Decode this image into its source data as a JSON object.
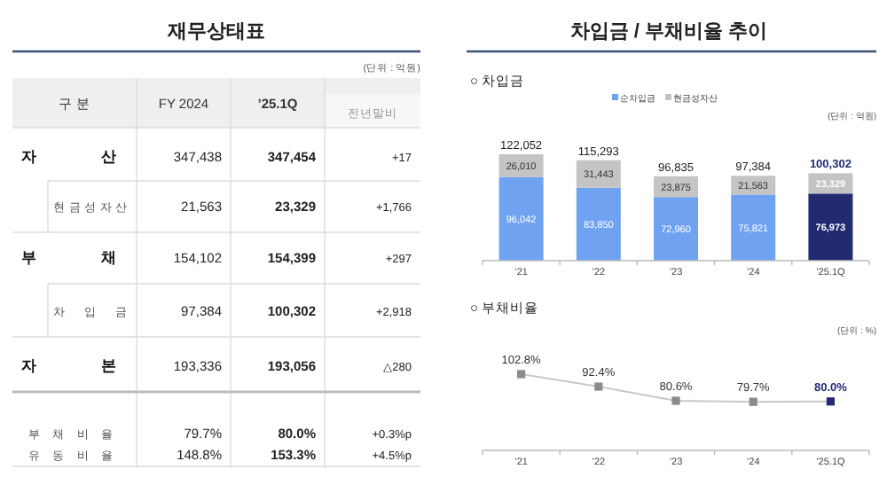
{
  "chart_data": [
    {
      "type": "other",
      "title": "재무상태표",
      "annotations": [
        "(단위 : 억원)"
      ],
      "categories": [
        "구 분",
        "FY 2024",
        "’25.1Q",
        "전년말비"
      ],
      "y_categories": [
        "자산",
        "현금성자산",
        "부채",
        "차입금",
        "자본",
        "부채비율",
        "유동비율"
      ],
      "cell_labels": [
        [
          "347,438",
          "347,454",
          "+17"
        ],
        [
          "21,563",
          "23,329",
          "+1,766"
        ],
        [
          "154,102",
          "154,399",
          "+297"
        ],
        [
          "97,384",
          "100,302",
          "+2,918"
        ],
        [
          "193,336",
          "193,056",
          "△280"
        ],
        [
          "79.7%",
          "80.0%",
          "+0.3%p"
        ],
        [
          "148.8%",
          "153.3%",
          "+4.5%p"
        ]
      ]
    },
    {
      "type": "bar",
      "title": "차입금 / 부채비율 추이",
      "subtitle": "○ 차입금",
      "annotations": [
        "(단위 : 억원)"
      ],
      "categories": [
        "’21",
        "’22",
        "’23",
        "’24",
        "’25.1Q"
      ],
      "stacked": true,
      "legend": "top",
      "series": [
        {
          "name": "순차입금",
          "color": "#6fa3f2",
          "colors": [
            "#6fa3f2",
            "#6fa3f2",
            "#6fa3f2",
            "#6fa3f2",
            "#222a72"
          ],
          "values": [
            96042,
            83850,
            72960,
            75821,
            76973
          ],
          "value_labels": [
            "96,042",
            "83,850",
            "72,960",
            "75,821",
            "76,973"
          ]
        },
        {
          "name": "현금성자산",
          "color": "#c4c4c4",
          "values": [
            26010,
            31443,
            23875,
            21563,
            23329
          ],
          "value_labels": [
            "26,010",
            "31,443",
            "23,875",
            "21,563",
            "23,329"
          ]
        }
      ],
      "totals": [
        "122,052",
        "115,293",
        "96,835",
        "97,384",
        "100,302"
      ]
    },
    {
      "type": "line",
      "subtitle": "○ 부채비율",
      "annotations": [
        "(단위 : %)"
      ],
      "categories": [
        "’21",
        "’22",
        "’23",
        "’24",
        "’25.1Q"
      ],
      "marker": "square",
      "series": [
        {
          "color": "#c8c8c8",
          "colors": [
            "#8a8a8a",
            "#8a8a8a",
            "#8a8a8a",
            "#8a8a8a",
            "#222a72"
          ],
          "values": [
            102.8,
            92.4,
            80.6,
            79.7,
            80.0
          ],
          "value_labels": [
            "102.8%",
            "92.4%",
            "80.6%",
            "79.7%",
            "80.0%"
          ]
        }
      ]
    }
  ]
}
